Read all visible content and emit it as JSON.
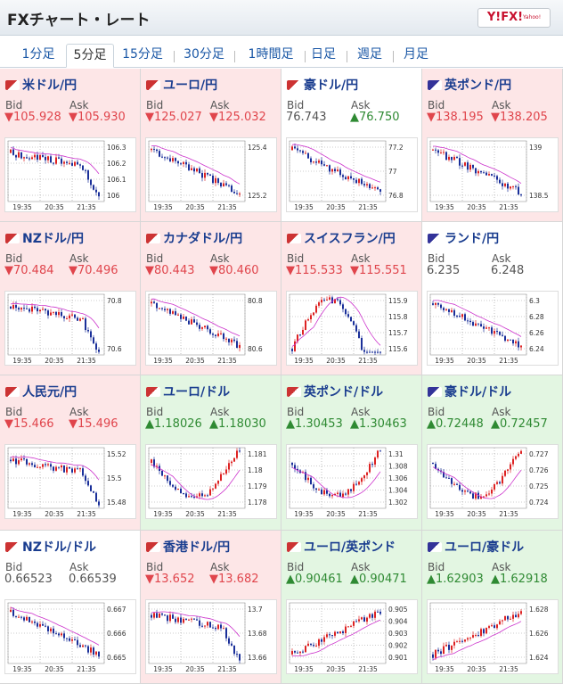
{
  "header": {
    "title": "FXチャート・レート",
    "logo_text": "Y!FX!",
    "logo_sub": "Yahoo!"
  },
  "tabs": [
    {
      "label": "1分足",
      "active": false
    },
    {
      "label": "5分足",
      "active": true
    },
    {
      "label": "15分足",
      "active": false
    },
    {
      "label": "30分足",
      "active": false
    },
    {
      "label": "1時間足",
      "active": false
    },
    {
      "label": "日足",
      "active": false
    },
    {
      "label": "週足",
      "active": false
    },
    {
      "label": "月足",
      "active": false
    }
  ],
  "labels": {
    "bid": "Bid",
    "ask": "Ask"
  },
  "time_ticks": [
    "19:35",
    "20:35",
    "21:35"
  ],
  "colors": {
    "down_bg": "#fde6e7",
    "up_bg": "#e3f6e2",
    "down": "#e0454c",
    "up": "#2f8a33",
    "ma": "#cc33cc",
    "candle_up": "#dd2222",
    "candle_down": "#1a2f99"
  },
  "pairs": [
    {
      "name": "米ドル/円",
      "flag": "us-jp-flag-icon",
      "bid": "▼105.928",
      "ask": "▼105.930",
      "dir": "down",
      "bid_dir": "down",
      "ask_dir": "down",
      "yticks": [
        "106.3",
        "106.2",
        "106.1",
        "106"
      ],
      "trend": "down-sharp"
    },
    {
      "name": "ユーロ/円",
      "flag": "eu-jp-flag-icon",
      "bid": "▼125.027",
      "ask": "▼125.032",
      "dir": "down",
      "bid_dir": "down",
      "ask_dir": "down",
      "yticks": [
        "125.4",
        "125.2"
      ],
      "trend": "down"
    },
    {
      "name": "豪ドル/円",
      "flag": "au-jp-flag-icon",
      "bid": "76.743",
      "ask": "▲76.750",
      "dir": "flat",
      "bid_dir": "flat",
      "ask_dir": "up",
      "yticks": [
        "77.2",
        "77",
        "76.8"
      ],
      "trend": "down"
    },
    {
      "name": "英ポンド/円",
      "flag": "gb-jp-flag-icon",
      "bid": "▼138.195",
      "ask": "▼138.205",
      "dir": "down",
      "bid_dir": "down",
      "ask_dir": "down",
      "yticks": [
        "139",
        "138.5"
      ],
      "trend": "down"
    },
    {
      "name": "NZドル/円",
      "flag": "nz-jp-flag-icon",
      "bid": "▼70.484",
      "ask": "▼70.496",
      "dir": "down",
      "bid_dir": "down",
      "ask_dir": "down",
      "yticks": [
        "70.8",
        "70.6"
      ],
      "trend": "down-sharp"
    },
    {
      "name": "カナダドル/円",
      "flag": "ca-jp-flag-icon",
      "bid": "▼80.443",
      "ask": "▼80.460",
      "dir": "down",
      "bid_dir": "down",
      "ask_dir": "down",
      "yticks": [
        "80.8",
        "80.6"
      ],
      "trend": "down"
    },
    {
      "name": "スイスフラン/円",
      "flag": "ch-jp-flag-icon",
      "bid": "▼115.533",
      "ask": "▼115.551",
      "dir": "down",
      "bid_dir": "down",
      "ask_dir": "down",
      "yticks": [
        "115.9",
        "115.8",
        "115.7",
        "115.6"
      ],
      "trend": "hump"
    },
    {
      "name": "ランド/円",
      "flag": "za-jp-flag-icon",
      "bid": "6.235",
      "ask": "6.248",
      "dir": "flat",
      "bid_dir": "flat",
      "ask_dir": "flat",
      "yticks": [
        "6.3",
        "6.28",
        "6.26",
        "6.24"
      ],
      "trend": "down"
    },
    {
      "name": "人民元/円",
      "flag": "cn-jp-flag-icon",
      "bid": "▼15.466",
      "ask": "▼15.496",
      "dir": "down",
      "bid_dir": "down",
      "ask_dir": "down",
      "yticks": [
        "15.52",
        "15.5",
        "15.48"
      ],
      "trend": "down-sharp"
    },
    {
      "name": "ユーロ/ドル",
      "flag": "eu-us-flag-icon",
      "bid": "▲1.18026",
      "ask": "▲1.18030",
      "dir": "up",
      "bid_dir": "up",
      "ask_dir": "up",
      "yticks": [
        "1.181",
        "1.18",
        "1.179",
        "1.178"
      ],
      "trend": "valley"
    },
    {
      "name": "英ポンド/ドル",
      "flag": "gb-us-flag-icon",
      "bid": "▲1.30453",
      "ask": "▲1.30463",
      "dir": "up",
      "bid_dir": "up",
      "ask_dir": "up",
      "yticks": [
        "1.31",
        "1.308",
        "1.306",
        "1.304",
        "1.302"
      ],
      "trend": "valley"
    },
    {
      "name": "豪ドル/ドル",
      "flag": "au-us-flag-icon",
      "bid": "▲0.72448",
      "ask": "▲0.72457",
      "dir": "up",
      "bid_dir": "up",
      "ask_dir": "up",
      "yticks": [
        "0.727",
        "0.726",
        "0.725",
        "0.724"
      ],
      "trend": "valley"
    },
    {
      "name": "NZドル/ドル",
      "flag": "nz-us-flag-icon",
      "bid": "0.66523",
      "ask": "0.66539",
      "dir": "flat",
      "bid_dir": "flat",
      "ask_dir": "flat",
      "yticks": [
        "0.667",
        "0.666",
        "0.665"
      ],
      "trend": "down"
    },
    {
      "name": "香港ドル/円",
      "flag": "hk-jp-flag-icon",
      "bid": "▼13.652",
      "ask": "▼13.682",
      "dir": "down",
      "bid_dir": "down",
      "ask_dir": "down",
      "yticks": [
        "13.7",
        "13.68",
        "13.66"
      ],
      "trend": "down-sharp"
    },
    {
      "name": "ユーロ/英ポンド",
      "flag": "eu-gb-flag-icon",
      "bid": "▲0.90461",
      "ask": "▲0.90471",
      "dir": "up",
      "bid_dir": "up",
      "ask_dir": "up",
      "yticks": [
        "0.905",
        "0.904",
        "0.903",
        "0.902",
        "0.901"
      ],
      "trend": "up"
    },
    {
      "name": "ユーロ/豪ドル",
      "flag": "eu-au-flag-icon",
      "bid": "▲1.62903",
      "ask": "▲1.62918",
      "dir": "up",
      "bid_dir": "up",
      "ask_dir": "up",
      "yticks": [
        "1.628",
        "1.626",
        "1.624"
      ],
      "trend": "up"
    }
  ]
}
